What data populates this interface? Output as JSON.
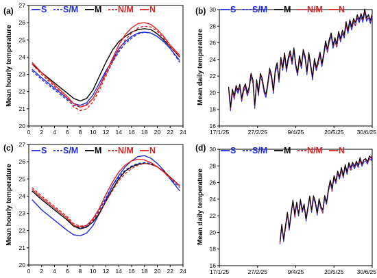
{
  "colors": {
    "S": "#1f2be0",
    "S/M": "#1f2be0",
    "M": "#000000",
    "N/M": "#e01f1f",
    "N": "#e01f1f"
  },
  "chart_data": [
    {
      "panel": "(a)",
      "type": "line",
      "ylabel": "Mean hourly temperature",
      "xticks": [
        0,
        2,
        4,
        6,
        8,
        10,
        12,
        14,
        16,
        18,
        20,
        22,
        24
      ],
      "xlim": [
        0,
        24
      ],
      "ylim": [
        20,
        27
      ],
      "yticks": [
        20,
        21,
        22,
        23,
        24,
        25,
        26,
        27
      ],
      "legend": [
        "S",
        "S/M",
        "M",
        "N/M",
        "N"
      ],
      "x": [
        0.5,
        2,
        4,
        6,
        7,
        8,
        9,
        10,
        11,
        12,
        13,
        14,
        15,
        16,
        17,
        18,
        19,
        20,
        21,
        22,
        23.5
      ],
      "series": [
        {
          "name": "S",
          "values": [
            23.3,
            22.8,
            22.2,
            21.6,
            21.3,
            21.2,
            21.35,
            21.8,
            22.5,
            23.2,
            23.8,
            24.5,
            24.9,
            25.2,
            25.4,
            25.45,
            25.4,
            25.2,
            24.9,
            24.5,
            23.8
          ]
        },
        {
          "name": "S/M",
          "values": [
            23.2,
            22.7,
            22.1,
            21.5,
            21.2,
            21.1,
            21.25,
            21.6,
            22.3,
            23.0,
            23.7,
            24.3,
            24.8,
            25.1,
            25.35,
            25.45,
            25.4,
            25.2,
            24.9,
            24.5,
            23.7
          ]
        },
        {
          "name": "M",
          "values": [
            23.6,
            23.1,
            22.5,
            21.9,
            21.6,
            21.45,
            21.6,
            22.1,
            22.9,
            23.7,
            24.4,
            24.9,
            25.2,
            25.45,
            25.6,
            25.65,
            25.6,
            25.35,
            25.0,
            24.6,
            24.0
          ]
        },
        {
          "name": "N/M",
          "values": [
            23.6,
            23.0,
            22.3,
            21.6,
            21.1,
            20.9,
            21.0,
            21.4,
            22.1,
            22.9,
            23.7,
            24.4,
            25.0,
            25.4,
            25.7,
            25.8,
            25.75,
            25.5,
            25.1,
            24.6,
            24.0
          ]
        },
        {
          "name": "N",
          "values": [
            23.7,
            23.1,
            22.4,
            21.7,
            21.3,
            21.1,
            21.2,
            21.6,
            22.3,
            23.1,
            23.9,
            24.7,
            25.3,
            25.7,
            25.95,
            26.0,
            25.9,
            25.6,
            25.2,
            24.7,
            24.1
          ]
        }
      ]
    },
    {
      "panel": "(b)",
      "type": "line",
      "ylabel": "Mean daily temperature",
      "xticks": [
        "17/1/25",
        "27/2/25",
        "9/4/25",
        "20/5/25",
        "30/6/25"
      ],
      "xlim": [
        "17/1/25",
        "30/6/25"
      ],
      "ylim": [
        16,
        30
      ],
      "yticks": [
        16,
        18,
        20,
        22,
        24,
        26,
        28,
        30
      ],
      "legend": [
        "S",
        "S/M",
        "M",
        "N/M",
        "N"
      ],
      "days_from_start": [
        10,
        12,
        14,
        16,
        18,
        20,
        22,
        24,
        26,
        28,
        30,
        32,
        34,
        36,
        38,
        40,
        42,
        44,
        46,
        48,
        50,
        52,
        54,
        56,
        58,
        60,
        62,
        64,
        66,
        68,
        70,
        72,
        74,
        76,
        78,
        80,
        82,
        84,
        86,
        88,
        90,
        92,
        94,
        96,
        98,
        100,
        102,
        104,
        106,
        108,
        110,
        112,
        114,
        116,
        118,
        120,
        122,
        124,
        126,
        128,
        130,
        132,
        134,
        136,
        138,
        140,
        142,
        144,
        146,
        148,
        150,
        152,
        154,
        156,
        158,
        160,
        162,
        164
      ],
      "base_values": [
        20.5,
        18.2,
        20.3,
        19.4,
        20.8,
        20.1,
        21.0,
        19.2,
        20.3,
        21.0,
        19.8,
        20.7,
        22.2,
        21.3,
        18.4,
        21.4,
        20.0,
        22.2,
        21.5,
        20.3,
        19.6,
        21.2,
        22.8,
        21.9,
        20.2,
        22.6,
        23.6,
        21.5,
        24.0,
        23.0,
        24.6,
        22.9,
        24.1,
        24.8,
        23.7,
        25.2,
        23.4,
        22.3,
        24.2,
        23.2,
        25.0,
        24.4,
        22.4,
        24.6,
        23.3,
        21.7,
        24.1,
        22.9,
        23.6,
        24.8,
        23.3,
        24.7,
        26.1,
        25.0,
        26.4,
        27.0,
        25.7,
        26.5,
        25.6,
        27.3,
        26.3,
        27.5,
        26.8,
        28.3,
        27.4,
        28.6,
        27.9,
        28.8,
        28.2,
        29.3,
        28.6,
        29.5,
        28.7,
        29.8,
        28.9,
        29.2,
        28.7,
        29.4
      ],
      "offsets": {
        "S": -0.25,
        "S/M": -0.1,
        "M": 0.15,
        "N/M": -0.05,
        "N": 0.1
      }
    },
    {
      "panel": "(c)",
      "type": "line",
      "ylabel": "Mean hourly temperature",
      "xticks": [
        0,
        2,
        4,
        6,
        8,
        10,
        12,
        14,
        16,
        18,
        20,
        22,
        24
      ],
      "xlim": [
        0,
        24
      ],
      "ylim": [
        20,
        27
      ],
      "yticks": [
        20,
        21,
        22,
        23,
        24,
        25,
        26,
        27
      ],
      "legend": [
        "S",
        "S/M",
        "M",
        "N/M",
        "N"
      ],
      "x": [
        0.5,
        2,
        4,
        6,
        7,
        8,
        9,
        10,
        11,
        12,
        13,
        14,
        15,
        16,
        17,
        18,
        19,
        20,
        21,
        22,
        23.5
      ],
      "series": [
        {
          "name": "S",
          "values": [
            23.8,
            23.2,
            22.6,
            22.0,
            21.75,
            21.7,
            21.85,
            22.3,
            23.0,
            23.8,
            24.6,
            25.2,
            25.7,
            26.05,
            26.3,
            26.35,
            26.2,
            25.9,
            25.5,
            25.0,
            24.3
          ]
        },
        {
          "name": "S/M",
          "values": [
            24.3,
            23.8,
            23.2,
            22.6,
            22.25,
            22.15,
            22.25,
            22.6,
            23.2,
            23.9,
            24.6,
            25.1,
            25.5,
            25.75,
            25.9,
            25.95,
            25.9,
            25.7,
            25.4,
            25.0,
            24.5
          ]
        },
        {
          "name": "M",
          "values": [
            24.3,
            23.8,
            23.2,
            22.6,
            22.25,
            22.1,
            22.2,
            22.5,
            23.0,
            23.7,
            24.4,
            25.0,
            25.45,
            25.7,
            25.85,
            25.9,
            25.85,
            25.7,
            25.45,
            25.1,
            24.6
          ]
        },
        {
          "name": "N/M",
          "values": [
            24.5,
            24.0,
            23.4,
            22.8,
            22.4,
            22.25,
            22.3,
            22.6,
            23.1,
            23.7,
            24.3,
            24.9,
            25.3,
            25.6,
            25.8,
            25.9,
            25.85,
            25.7,
            25.45,
            25.1,
            24.6
          ]
        },
        {
          "name": "N",
          "values": [
            24.4,
            23.9,
            23.3,
            22.7,
            22.3,
            22.2,
            22.3,
            22.7,
            23.3,
            24.1,
            24.8,
            25.4,
            25.8,
            26.05,
            26.15,
            26.1,
            25.95,
            25.7,
            25.4,
            25.05,
            24.6
          ]
        }
      ]
    },
    {
      "panel": "(d)",
      "type": "line",
      "ylabel": "Mean daily temperature",
      "xticks": [
        "17/1/25",
        "27/2/25",
        "9/4/25",
        "20/5/25",
        "30/6/25"
      ],
      "xlim": [
        "17/1/25",
        "30/6/25"
      ],
      "ylim": [
        16,
        30
      ],
      "yticks": [
        16,
        18,
        20,
        22,
        24,
        26,
        28,
        30
      ],
      "legend": [
        "S",
        "S/M",
        "M",
        "N/M",
        "N"
      ],
      "days_from_start": [
        65,
        67,
        69,
        71,
        73,
        75,
        77,
        79,
        81,
        83,
        85,
        87,
        89,
        91,
        93,
        95,
        97,
        99,
        101,
        103,
        105,
        107,
        109,
        111,
        113,
        115,
        117,
        119,
        121,
        123,
        125,
        127,
        129,
        131,
        133,
        135,
        137,
        139,
        141,
        143,
        145,
        147,
        149,
        151,
        153,
        155,
        157,
        159,
        161,
        163,
        164
      ],
      "base_values": [
        18.7,
        21.0,
        19.1,
        20.6,
        22.4,
        20.4,
        22.4,
        23.8,
        22.0,
        23.6,
        22.1,
        24.0,
        22.6,
        23.2,
        21.6,
        22.9,
        24.4,
        22.6,
        24.2,
        23.7,
        22.2,
        24.1,
        23.0,
        22.5,
        24.4,
        23.5,
        25.2,
        26.2,
        25.1,
        26.8,
        26.0,
        27.4,
        26.6,
        27.6,
        26.8,
        28.0,
        27.3,
        28.3,
        27.6,
        28.4,
        27.8,
        28.6,
        28.0,
        28.8,
        28.2,
        28.6,
        28.9,
        28.4,
        29.0,
        28.9,
        29.2
      ],
      "offsets": {
        "S": -0.2,
        "S/M": -0.1,
        "M": 0.1,
        "N/M": -0.05,
        "N": 0.05
      }
    }
  ]
}
